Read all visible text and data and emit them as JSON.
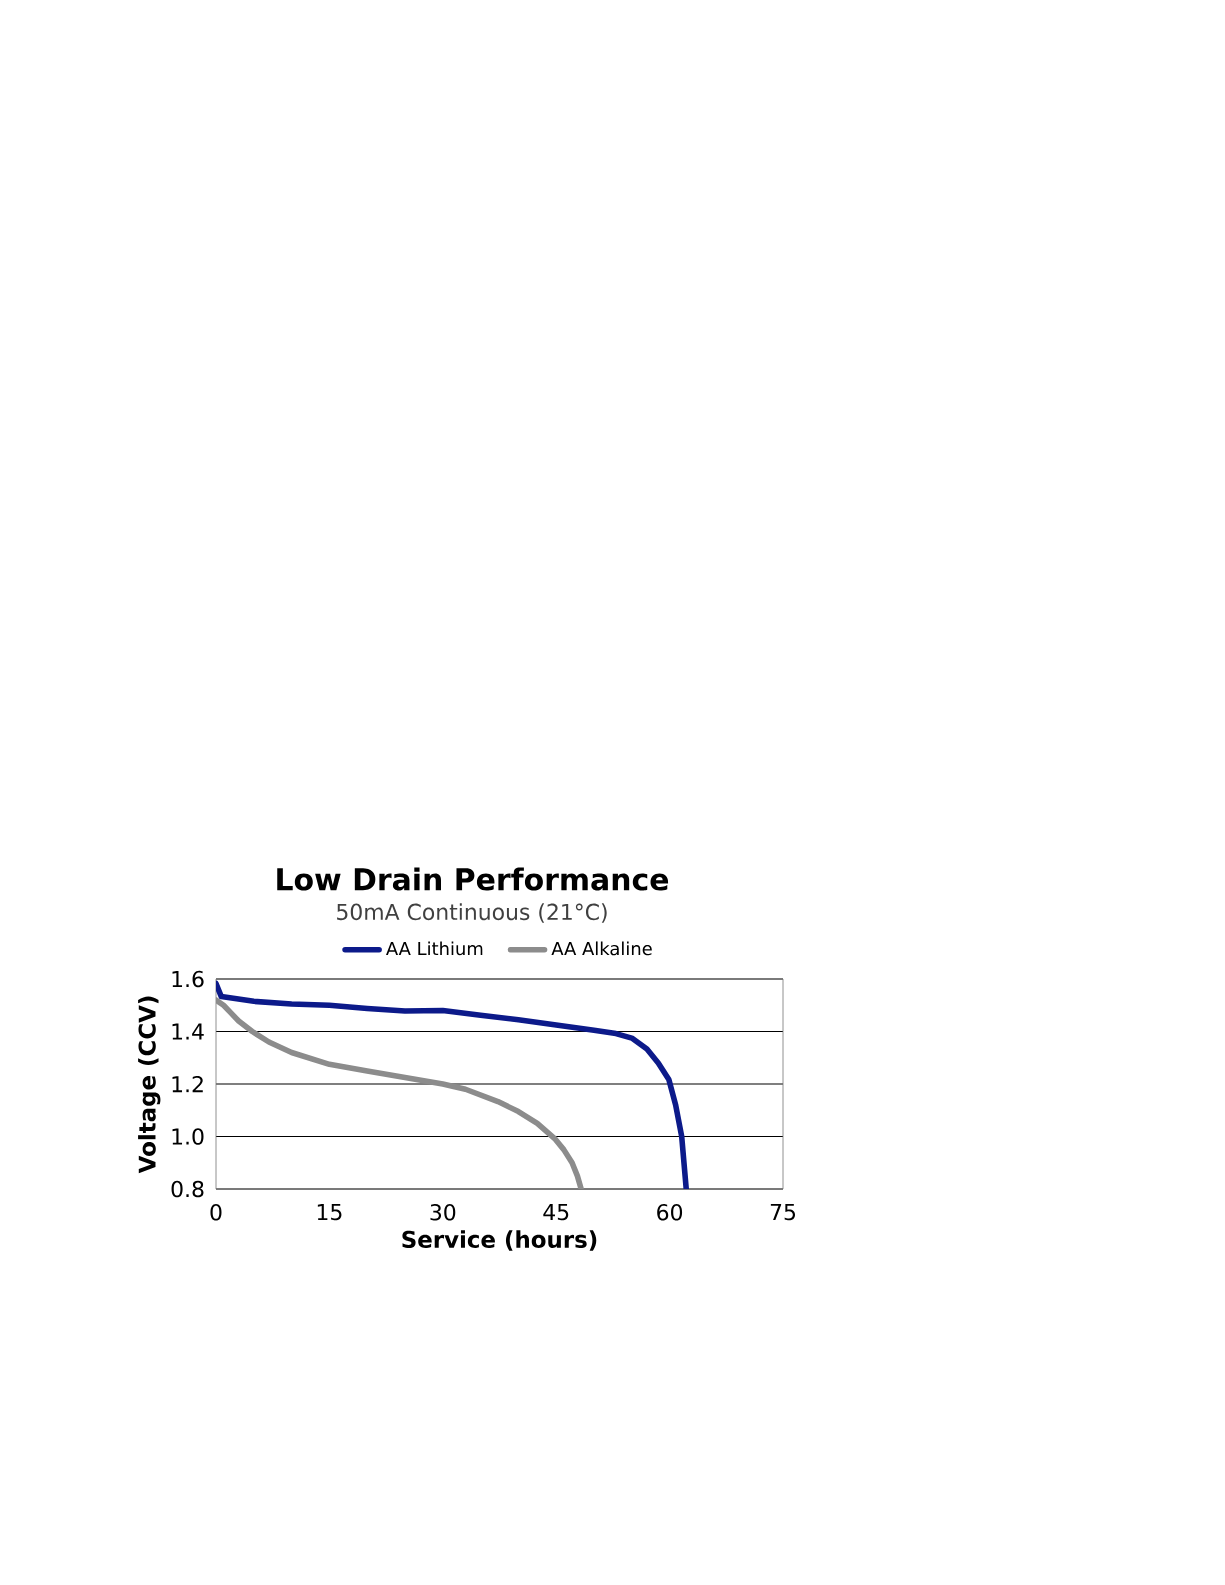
{
  "chart_data": {
    "type": "line",
    "title": "Low Drain Performance",
    "subtitle": "50mA Continuous (21°C)",
    "xlabel": "Service (hours)",
    "ylabel": "Voltage (CCV)",
    "xlim": [
      0,
      75
    ],
    "xticks": [
      0,
      15,
      30,
      45,
      60,
      75
    ],
    "ylim": [
      0.8,
      1.6
    ],
    "yticks": [
      0.8,
      {
        "value": 1.0,
        "label": "1.0"
      },
      1.2,
      1.4,
      1.6
    ],
    "grid": "y",
    "legend": "top",
    "marker": "none",
    "line_style": "solid",
    "series": [
      {
        "name": "AA Lithium",
        "color": "#0c1a8a",
        "x": [
          0,
          0.7,
          5,
          10,
          15,
          20,
          25,
          30,
          35,
          40,
          45,
          50,
          52.9,
          55,
          57,
          58.5,
          59.9,
          60.8,
          61.6,
          61.9,
          62.2
        ],
        "values": [
          1.583,
          1.533,
          1.515,
          1.505,
          1.5,
          1.488,
          1.478,
          1.48,
          1.462,
          1.445,
          1.425,
          1.405,
          1.392,
          1.375,
          1.333,
          1.28,
          1.217,
          1.12,
          1.0,
          0.9,
          0.8
        ]
      },
      {
        "name": "AA Alkaline",
        "color": "#8c8c8c",
        "x": [
          0,
          1,
          2,
          3,
          4.8,
          7,
          10,
          15,
          20,
          25,
          30,
          33,
          37.3,
          40,
          42.5,
          44.8,
          46,
          47.1,
          47.8,
          48.3
        ],
        "values": [
          1.52,
          1.5,
          1.47,
          1.44,
          1.4,
          1.36,
          1.32,
          1.275,
          1.25,
          1.225,
          1.2,
          1.18,
          1.133,
          1.095,
          1.05,
          0.992,
          0.95,
          0.9,
          0.85,
          0.8
        ]
      }
    ]
  }
}
